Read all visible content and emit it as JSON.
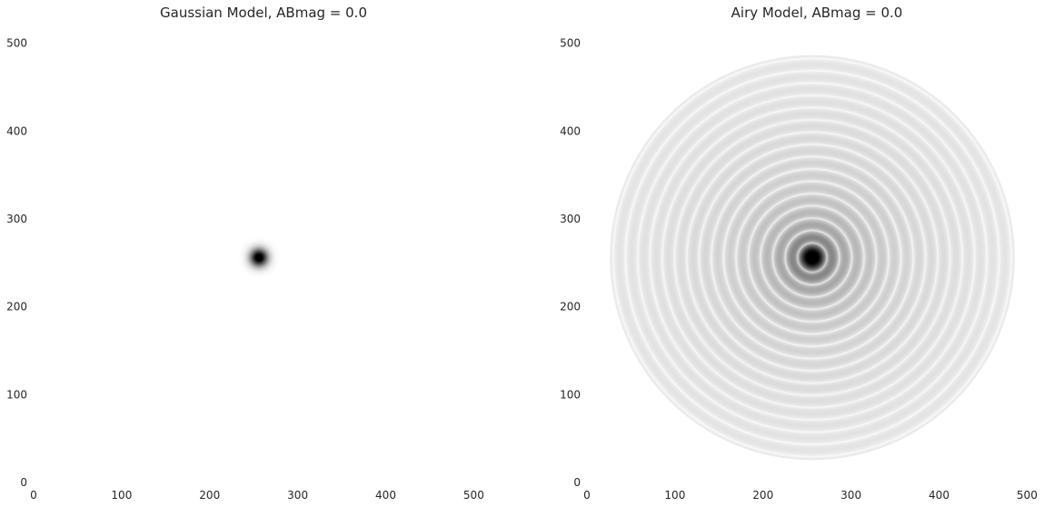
{
  "chart_data": [
    {
      "type": "heatmap",
      "title": "Gaussian Model, ABmag = 0.0",
      "xlabel": "",
      "ylabel": "",
      "xlim": [
        0,
        512
      ],
      "ylim": [
        0,
        512
      ],
      "xticks": [
        0,
        100,
        200,
        300,
        400,
        500
      ],
      "yticks": [
        0,
        100,
        200,
        300,
        400,
        500
      ],
      "grid": false,
      "colormap": "gray_r",
      "model": {
        "profile": "gaussian",
        "center": [
          256,
          256
        ],
        "fwhm": 17
      }
    },
    {
      "type": "heatmap",
      "title": "Airy Model, ABmag = 0.0",
      "xlabel": "",
      "ylabel": "",
      "xlim": [
        0,
        512
      ],
      "ylim": [
        0,
        512
      ],
      "xticks": [
        0,
        100,
        200,
        300,
        400,
        500
      ],
      "yticks": [
        0,
        100,
        200,
        300,
        400,
        500
      ],
      "grid": false,
      "colormap": "gray_r",
      "model": {
        "profile": "airy",
        "center": [
          256,
          256
        ],
        "first_dark_ring_radius": 17
      }
    }
  ],
  "colors": {
    "background": "#ffffff",
    "text": "#262626",
    "peak": "#000000"
  }
}
